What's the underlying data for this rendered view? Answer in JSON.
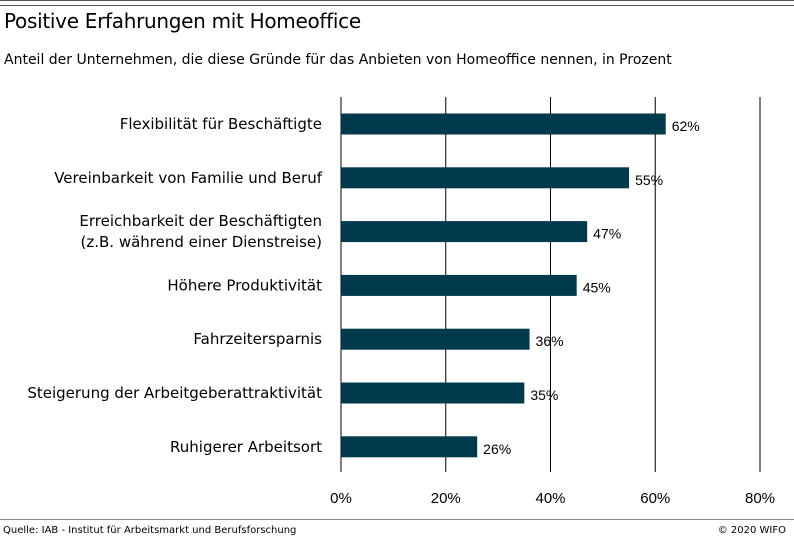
{
  "title": "Positive Erfahrungen mit Homeoffice",
  "subtitle": "Anteil der Unternehmen, die diese Gründe für das Anbieten von Homeoffice nennen, in Prozent",
  "source": "Quelle: IAB - Institut für Arbeitsmarkt und Berufsforschung",
  "copyright": "© 2020 WIFO",
  "colors": {
    "bar": "#003a4d",
    "gridline": "#000000"
  },
  "chart_data": {
    "type": "bar",
    "orientation": "horizontal",
    "categories": [
      [
        "Flexibilität für Beschäftigte"
      ],
      [
        "Vereinbarkeit von Familie und Beruf"
      ],
      [
        "Erreichbarkeit der Beschäftigten",
        "(z.B. während einer Dienstreise)"
      ],
      [
        "Höhere Produktivität"
      ],
      [
        "Fahrzeitersparnis"
      ],
      [
        "Steigerung der Arbeitgeberattraktivität"
      ],
      [
        "Ruhigerer Arbeitsort"
      ]
    ],
    "values": [
      62,
      55,
      47,
      45,
      36,
      35,
      26
    ],
    "value_labels": [
      "62%",
      "55%",
      "47%",
      "45%",
      "36%",
      "35%",
      "26%"
    ],
    "xlim": [
      0,
      80
    ],
    "xticks": [
      0,
      20,
      40,
      60,
      80
    ],
    "xtick_labels": [
      "0%",
      "20%",
      "40%",
      "60%",
      "80%"
    ],
    "grid": "vertical",
    "legend": "none"
  }
}
